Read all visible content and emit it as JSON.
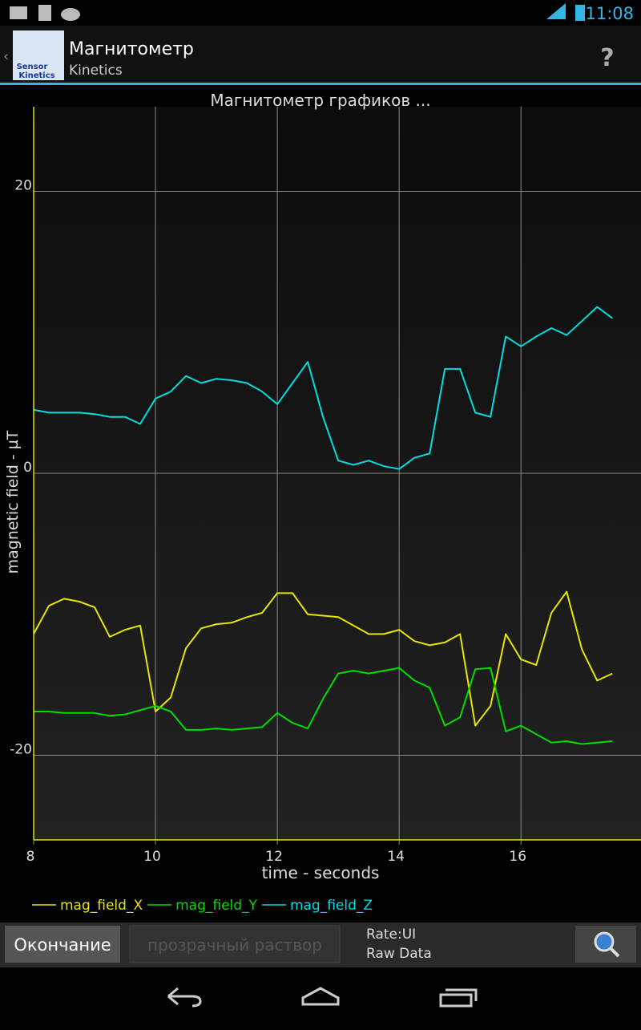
{
  "status_bar": {
    "time": "11:08"
  },
  "app_bar": {
    "icon_label": [
      "Sensor",
      "Kinetics"
    ],
    "title": "Магнитометр",
    "subtitle": "Kinetics",
    "help": "?"
  },
  "chart_data": {
    "type": "line",
    "title": "Магнитометр графиков  ...",
    "x_label": "time - seconds",
    "y_label": "magnetic field - µT",
    "x": [
      8,
      8.25,
      8.5,
      8.75,
      9,
      9.25,
      9.5,
      9.75,
      10,
      10.25,
      10.5,
      10.75,
      11,
      11.25,
      11.5,
      11.75,
      12,
      12.25,
      12.5,
      12.75,
      13,
      13.25,
      13.5,
      13.75,
      14,
      14.25,
      14.5,
      14.75,
      15,
      15.25,
      15.5,
      15.75,
      16,
      16.25,
      16.5,
      16.75,
      17,
      17.25,
      17.5
    ],
    "xlim": [
      8,
      17.97
    ],
    "ylim": [
      -26,
      26
    ],
    "xticks": [
      8,
      10,
      12,
      14,
      16
    ],
    "yticks": [
      -20,
      0,
      20
    ],
    "grid": true,
    "series": [
      {
        "name": "mag_field_X",
        "color": "#e6e600",
        "values": [
          -11.4,
          -9.4,
          -8.9,
          -9.1,
          -9.5,
          -11.6,
          -11.1,
          -10.8,
          -16.9,
          -15.9,
          -12.4,
          -11.0,
          -10.7,
          -10.6,
          -10.2,
          -9.9,
          -8.5,
          -8.5,
          -10.0,
          -10.1,
          -10.2,
          -10.8,
          -11.4,
          -11.4,
          -11.1,
          -11.9,
          -12.2,
          -12.0,
          -11.4,
          -17.9,
          -16.5,
          -11.4,
          -13.2,
          -13.6,
          -9.9,
          -8.4,
          -12.5,
          -14.7,
          -14.2
        ]
      },
      {
        "name": "mag_field_Y",
        "color": "#00dd00",
        "values": [
          -16.9,
          -16.9,
          -17.0,
          -17.0,
          -17.0,
          -17.2,
          -17.1,
          -16.8,
          -16.5,
          -16.9,
          -18.2,
          -18.2,
          -18.1,
          -18.2,
          -18.1,
          -18.0,
          -17.0,
          -17.7,
          -18.1,
          -16.0,
          -14.2,
          -14.0,
          -14.2,
          -14.0,
          -13.8,
          -14.7,
          -15.2,
          -17.9,
          -17.3,
          -13.9,
          -13.8,
          -18.3,
          -17.9,
          -18.5,
          -19.1,
          -19.0,
          -19.2,
          -19.1,
          -19.0
        ]
      },
      {
        "name": "mag_field_Z",
        "color": "#00dde0",
        "values": [
          4.5,
          4.3,
          4.3,
          4.3,
          4.2,
          4.0,
          4.0,
          3.5,
          5.3,
          5.8,
          6.9,
          6.4,
          6.7,
          6.6,
          6.4,
          5.8,
          4.9,
          6.4,
          7.9,
          4.0,
          0.9,
          0.6,
          0.9,
          0.5,
          0.3,
          1.1,
          1.4,
          7.4,
          7.4,
          4.3,
          4.0,
          9.7,
          9.0,
          9.7,
          10.3,
          9.8,
          10.8,
          11.8,
          11.0
        ]
      }
    ]
  },
  "toolbar": {
    "stop_button": "Окончание",
    "input_placeholder": "прозрачный раствор",
    "rate": "Rate:UI",
    "mode": "Raw Data"
  }
}
